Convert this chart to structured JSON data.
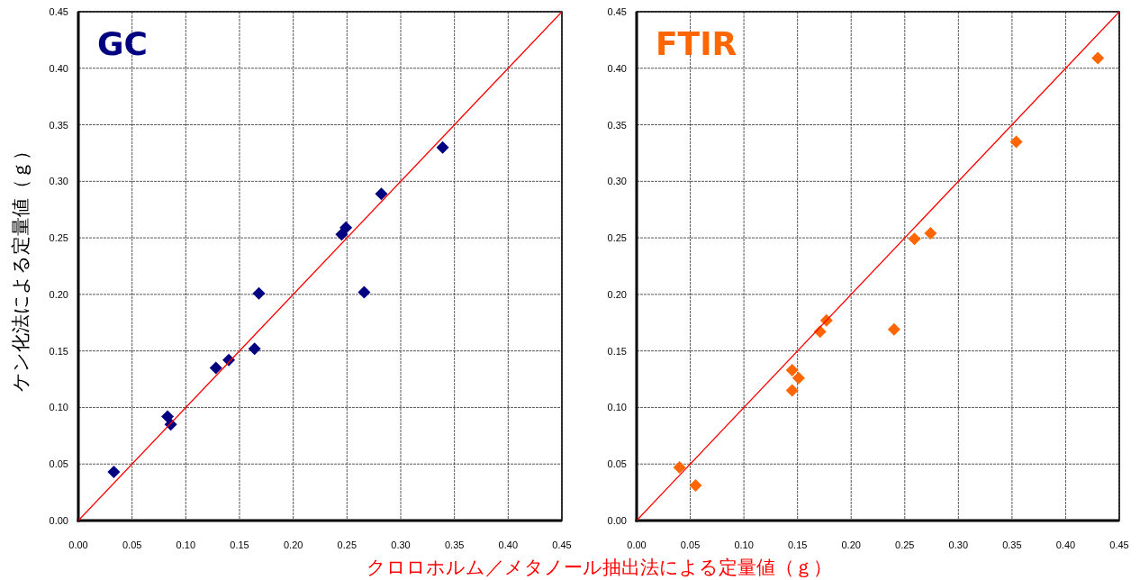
{
  "chart_data": [
    {
      "type": "scatter",
      "title": "GC",
      "xlabel": "クロロホルム／メタノール抽出法による定量値（ｇ）",
      "ylabel": "ケン化法による定量値（ｇ）",
      "xlim": [
        0,
        0.45
      ],
      "ylim": [
        0,
        0.45
      ],
      "xticks": [
        {
          "value": 0,
          "label": "0.00"
        },
        {
          "value": 0.05,
          "label": "0.05"
        },
        {
          "value": 0.1,
          "label": "0.10"
        },
        {
          "value": 0.15,
          "label": "0.15"
        },
        {
          "value": 0.2,
          "label": "0.20"
        },
        {
          "value": 0.25,
          "label": "0.25"
        },
        {
          "value": 0.3,
          "label": "0.30"
        },
        {
          "value": 0.35,
          "label": "0.35"
        },
        {
          "value": 0.4,
          "label": "0.40"
        },
        {
          "value": 0.45,
          "label": "0.45"
        }
      ],
      "yticks": [
        {
          "value": 0,
          "label": "0.00"
        },
        {
          "value": 0.05,
          "label": "0.05"
        },
        {
          "value": 0.1,
          "label": "0.10"
        },
        {
          "value": 0.15,
          "label": "0.15"
        },
        {
          "value": 0.2,
          "label": "0.20"
        },
        {
          "value": 0.25,
          "label": "0.25"
        },
        {
          "value": 0.3,
          "label": "0.30"
        },
        {
          "value": 0.35,
          "label": "0.35"
        },
        {
          "value": 0.4,
          "label": "0.40"
        },
        {
          "value": 0.45,
          "label": "0.45"
        }
      ],
      "grid": true,
      "series": [
        {
          "color": "#000080",
          "marker": "diamond",
          "x": [
            0.033,
            0.083,
            0.086,
            0.128,
            0.14,
            0.164,
            0.168,
            0.245,
            0.249,
            0.266,
            0.282,
            0.339
          ],
          "values": [
            0.043,
            0.092,
            0.085,
            0.135,
            0.142,
            0.152,
            0.201,
            0.253,
            0.259,
            0.202,
            0.289,
            0.33
          ]
        },
        {
          "type": "line",
          "color": "#ff0000",
          "x": [
            0,
            0.45
          ],
          "values": [
            0,
            0.45
          ]
        }
      ]
    },
    {
      "type": "scatter",
      "title": "FTIR",
      "xlim": [
        0,
        0.45
      ],
      "ylim": [
        0,
        0.45
      ],
      "xticks": [
        {
          "value": 0,
          "label": "0.00"
        },
        {
          "value": 0.05,
          "label": "0.05"
        },
        {
          "value": 0.1,
          "label": "0.10"
        },
        {
          "value": 0.15,
          "label": "0.15"
        },
        {
          "value": 0.2,
          "label": "0.20"
        },
        {
          "value": 0.25,
          "label": "0.25"
        },
        {
          "value": 0.3,
          "label": "0.30"
        },
        {
          "value": 0.35,
          "label": "0.35"
        },
        {
          "value": 0.4,
          "label": "0.40"
        },
        {
          "value": 0.45,
          "label": "0.45"
        }
      ],
      "yticks": [
        {
          "value": 0,
          "label": "0.00"
        },
        {
          "value": 0.05,
          "label": "0.05"
        },
        {
          "value": 0.1,
          "label": "0.10"
        },
        {
          "value": 0.15,
          "label": "0.15"
        },
        {
          "value": 0.2,
          "label": "0.20"
        },
        {
          "value": 0.25,
          "label": "0.25"
        },
        {
          "value": 0.3,
          "label": "0.30"
        },
        {
          "value": 0.35,
          "label": "0.35"
        },
        {
          "value": 0.4,
          "label": "0.40"
        },
        {
          "value": 0.45,
          "label": "0.45"
        }
      ],
      "grid": true,
      "series": [
        {
          "color": "#ff6600",
          "marker": "diamond",
          "x": [
            0.04,
            0.055,
            0.145,
            0.145,
            0.151,
            0.171,
            0.177,
            0.24,
            0.259,
            0.274,
            0.354,
            0.43
          ],
          "values": [
            0.047,
            0.031,
            0.115,
            0.133,
            0.126,
            0.167,
            0.177,
            0.169,
            0.249,
            0.254,
            0.335,
            0.409
          ]
        },
        {
          "type": "line",
          "color": "#ff0000",
          "x": [
            0,
            0.45
          ],
          "values": [
            0,
            0.45
          ]
        }
      ]
    }
  ]
}
